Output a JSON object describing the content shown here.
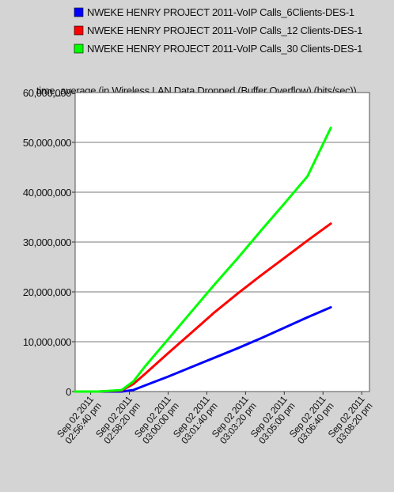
{
  "chart_data": {
    "type": "line",
    "title": "time_average (in Wireless LAN.Data Dropped (Buffer Overflow) (bits/sec))",
    "xlabel": "",
    "ylabel": "",
    "x_ticks": [
      [
        "Sep 02 2011",
        "02:56:40 pm"
      ],
      [
        "Sep 02 2011",
        "02:58:20 pm"
      ],
      [
        "Sep 02 2011",
        "03:00:00 pm"
      ],
      [
        "Sep 02 2011",
        "03:01:40 pm"
      ],
      [
        "Sep 02 2011",
        "03:03:20 pm"
      ],
      [
        "Sep 02 2011",
        "03:05:00 pm"
      ],
      [
        "Sep 02 2011",
        "03:06:40 pm"
      ],
      [
        "Sep 02 2011",
        "03:08:20 pm"
      ]
    ],
    "y_ticks": [
      "0",
      "10,000,000",
      "20,000,000",
      "30,000,000",
      "40,000,000",
      "50,000,000",
      "60,000,000"
    ],
    "ylim": [
      0,
      60000000
    ],
    "xlim": [
      "2011-09-02 14:56:00",
      "2011-09-02 15:08:40"
    ],
    "grid": true,
    "legend_position": "top",
    "series": [
      {
        "name": "NWEKE HENRY PROJECT 2011-VoIP Calls_6Clients-DES-1",
        "color": "#0000ff",
        "x": [
          "14:56:00",
          "14:57:00",
          "14:58:00",
          "14:58:30",
          "14:59:00",
          "15:00:00",
          "15:01:00",
          "15:02:00",
          "15:03:00",
          "15:04:00",
          "15:05:00",
          "15:06:00",
          "15:07:00"
        ],
        "y": [
          0,
          0,
          0,
          300000,
          1200000,
          3000000,
          4900000,
          6800000,
          8700000,
          10700000,
          12800000,
          14900000,
          16900000
        ]
      },
      {
        "name": "NWEKE HENRY PROJECT 2011-VoIP Calls_12 Clients-DES-1",
        "color": "#ff0000",
        "x": [
          "14:56:00",
          "14:57:00",
          "14:58:00",
          "14:58:30",
          "14:59:00",
          "15:00:00",
          "15:01:00",
          "15:02:00",
          "15:03:00",
          "15:04:00",
          "15:05:00",
          "15:06:00",
          "15:07:00"
        ],
        "y": [
          0,
          0,
          200000,
          1500000,
          3500000,
          7700000,
          11800000,
          15900000,
          19700000,
          23300000,
          26800000,
          30300000,
          33700000
        ]
      },
      {
        "name": "NWEKE HENRY PROJECT 2011-VoIP Calls_30 Clients-DES-1",
        "color": "#00ff00",
        "x": [
          "14:56:00",
          "14:57:00",
          "14:58:00",
          "14:58:30",
          "14:59:00",
          "15:00:00",
          "15:01:00",
          "15:02:00",
          "15:03:00",
          "15:04:00",
          "15:05:00",
          "15:06:00",
          "15:07:00"
        ],
        "y": [
          0,
          0,
          300000,
          2000000,
          5000000,
          10500000,
          16000000,
          21500000,
          26800000,
          32300000,
          37700000,
          43200000,
          52900000
        ]
      }
    ]
  }
}
